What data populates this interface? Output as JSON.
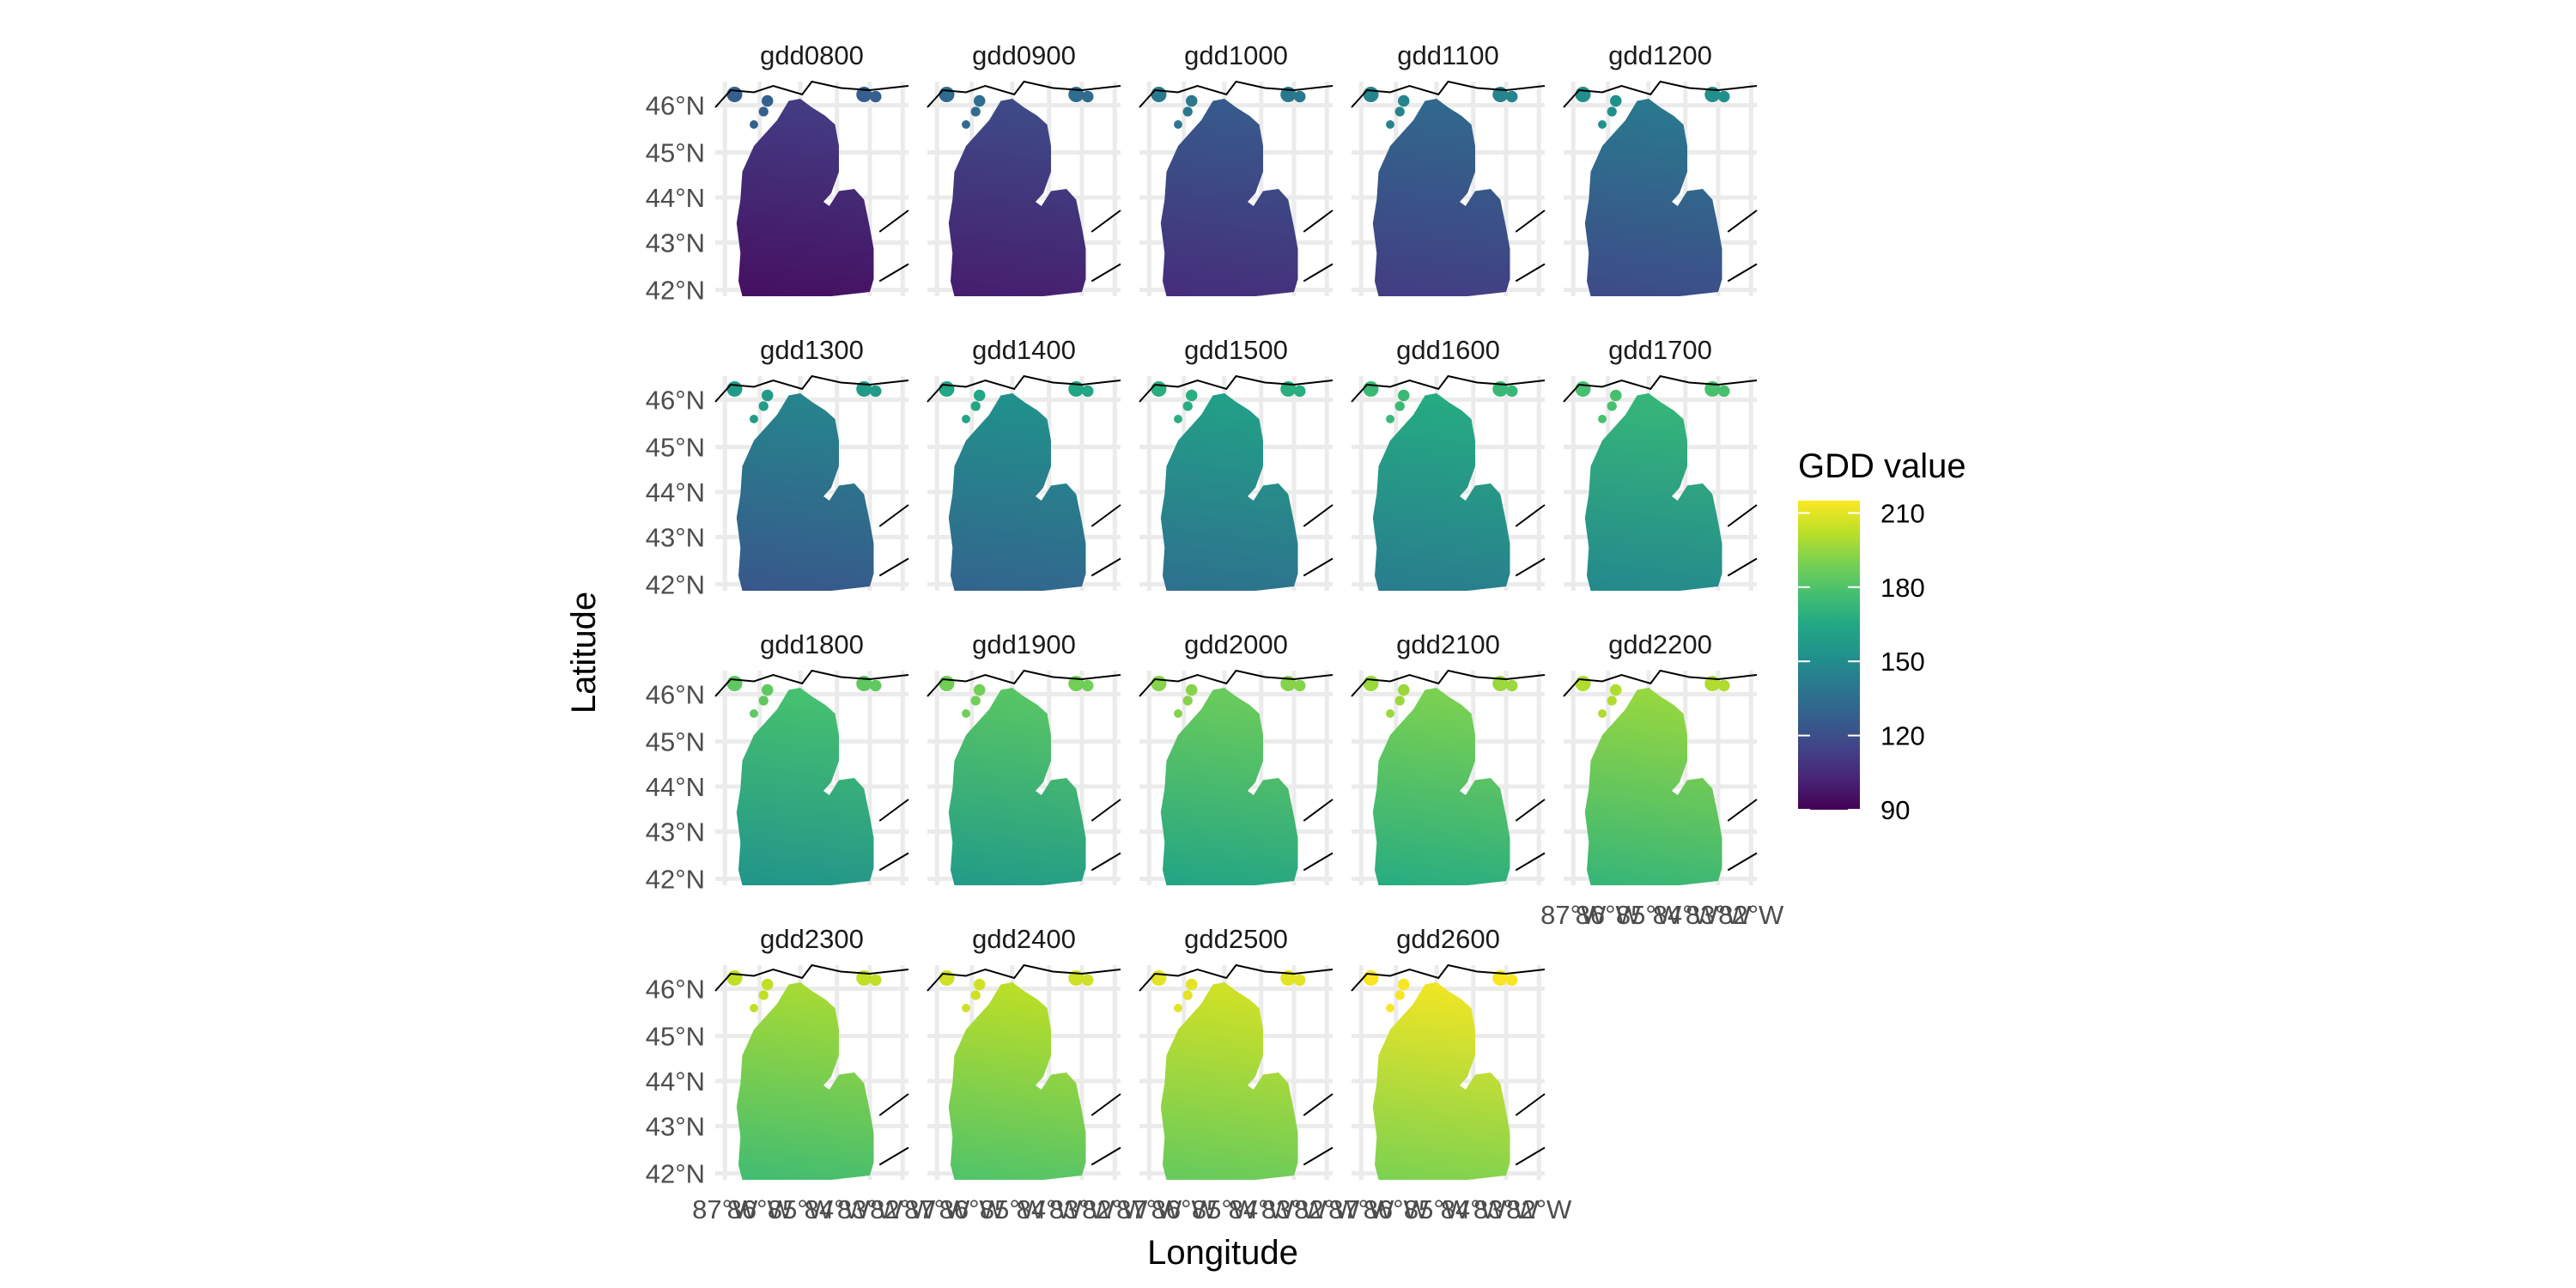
{
  "chart_data": {
    "type": "heatmap",
    "subtype": "faceted-map",
    "region": "Michigan Lower Peninsula",
    "xlabel": "Longitude",
    "ylabel": "Latitude",
    "x_ticks": [
      "87°W",
      "86°W",
      "85°W",
      "84°W",
      "83°W",
      "82°W"
    ],
    "x_range": [
      -87.3,
      -81.8
    ],
    "y_ticks": [
      "42°N",
      "43°N",
      "44°N",
      "45°N",
      "46°N"
    ],
    "y_range": [
      41.7,
      46.1
    ],
    "grid": true,
    "legend": {
      "title": "GDD value",
      "placement": "right",
      "colormap": "viridis",
      "range": [
        90,
        215
      ],
      "ticks": [
        90,
        120,
        150,
        180,
        210
      ]
    },
    "facets": [
      {
        "name": "gdd0800",
        "south": 95,
        "north": 112,
        "islands": 128
      },
      {
        "name": "gdd0900",
        "south": 100,
        "north": 118,
        "islands": 134
      },
      {
        "name": "gdd1000",
        "south": 106,
        "north": 125,
        "islands": 140
      },
      {
        "name": "gdd1100",
        "south": 112,
        "north": 132,
        "islands": 146
      },
      {
        "name": "gdd1200",
        "south": 118,
        "north": 140,
        "islands": 152
      },
      {
        "name": "gdd1300",
        "south": 124,
        "north": 146,
        "islands": 158
      },
      {
        "name": "gdd1400",
        "south": 130,
        "north": 152,
        "islands": 164
      },
      {
        "name": "gdd1500",
        "south": 136,
        "north": 160,
        "islands": 168
      },
      {
        "name": "gdd1600",
        "south": 142,
        "north": 166,
        "islands": 174
      },
      {
        "name": "gdd1700",
        "south": 148,
        "north": 172,
        "islands": 178
      },
      {
        "name": "gdd1800",
        "south": 154,
        "north": 178,
        "islands": 184
      },
      {
        "name": "gdd1900",
        "south": 158,
        "north": 182,
        "islands": 188
      },
      {
        "name": "gdd2000",
        "south": 163,
        "north": 186,
        "islands": 192
      },
      {
        "name": "gdd2100",
        "south": 167,
        "north": 190,
        "islands": 196
      },
      {
        "name": "gdd2200",
        "south": 172,
        "north": 195,
        "islands": 200
      },
      {
        "name": "gdd2300",
        "south": 176,
        "north": 198,
        "islands": 203
      },
      {
        "name": "gdd2400",
        "south": 180,
        "north": 202,
        "islands": 206
      },
      {
        "name": "gdd2500",
        "south": 185,
        "north": 206,
        "islands": 210
      },
      {
        "name": "gdd2600",
        "south": 190,
        "north": 212,
        "islands": 214
      }
    ],
    "layout": {
      "columns": 5,
      "rows": 4
    }
  }
}
